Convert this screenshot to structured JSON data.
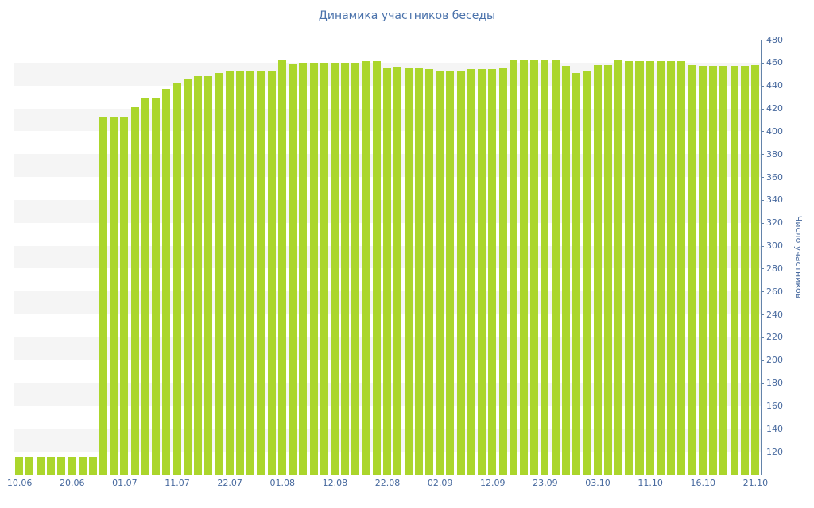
{
  "chart_data": {
    "type": "bar",
    "title": "Динамика участников беседы",
    "ylabel": "Число участников",
    "xlabel": "",
    "ylim": [
      100,
      480
    ],
    "grid_interval": 20,
    "grid": "striped-bands",
    "legend": "none",
    "y_ticks": [
      480,
      460,
      440,
      420,
      400,
      380,
      360,
      340,
      320,
      300,
      280,
      260,
      240,
      220,
      200,
      180,
      160,
      140,
      120
    ],
    "x_ticks": [
      {
        "label": "10.06",
        "index": 0
      },
      {
        "label": "20.06",
        "index": 5
      },
      {
        "label": "01.07",
        "index": 10
      },
      {
        "label": "11.07",
        "index": 15
      },
      {
        "label": "22.07",
        "index": 20
      },
      {
        "label": "01.08",
        "index": 25
      },
      {
        "label": "12.08",
        "index": 30
      },
      {
        "label": "22.08",
        "index": 35
      },
      {
        "label": "02.09",
        "index": 40
      },
      {
        "label": "12.09",
        "index": 45
      },
      {
        "label": "23.09",
        "index": 50
      },
      {
        "label": "03.10",
        "index": 55
      },
      {
        "label": "11.10",
        "index": 60
      },
      {
        "label": "16.10",
        "index": 65
      },
      {
        "label": "21.10",
        "index": 70
      }
    ],
    "values": [
      115,
      115,
      115,
      115,
      115,
      115,
      115,
      115,
      413,
      413,
      413,
      421,
      429,
      429,
      437,
      442,
      446,
      448,
      448,
      451,
      452,
      452,
      452,
      452,
      453,
      462,
      459,
      460,
      460,
      460,
      460,
      460,
      460,
      461,
      461,
      455,
      456,
      455,
      455,
      454,
      453,
      453,
      453,
      454,
      454,
      454,
      455,
      462,
      463,
      463,
      463,
      463,
      457,
      451,
      453,
      458,
      458,
      462,
      461,
      461,
      461,
      461,
      461,
      461,
      458,
      457,
      457,
      457,
      457,
      457,
      458
    ],
    "colors": {
      "bar": "#abd62c",
      "stripe": "#f5f5f5",
      "text": "#47699e",
      "title": "#4a72ab",
      "axis": "#6383a9"
    }
  }
}
